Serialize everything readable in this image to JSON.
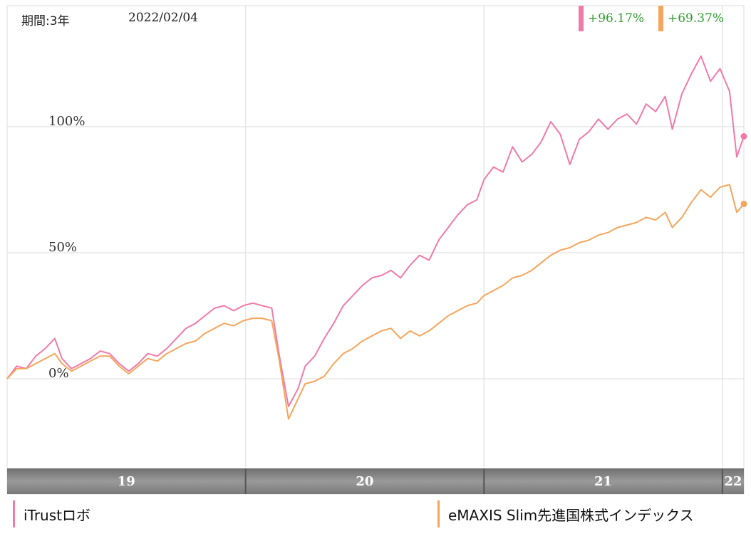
{
  "header": {
    "period_label": "期間:3年",
    "date": "2022/02/04"
  },
  "returns": [
    {
      "value": "+96.17%",
      "color": "#f07aa8"
    },
    {
      "value": "+69.37%",
      "color": "#f5a55c"
    }
  ],
  "legend": [
    {
      "name": "iTrustロボ",
      "color": "#f07aa8"
    },
    {
      "name": "eMAXIS Slim先進国株式インデックス",
      "color": "#f5a55c"
    }
  ],
  "colors": {
    "returns_text": "#2e9d2e",
    "grid": "#e6e6e6",
    "timeline_band": "#8a8a8a"
  },
  "chart_data": {
    "type": "line",
    "xlim": [
      2019.0,
      2022.09
    ],
    "ylim": [
      -35,
      148
    ],
    "y_ticks": [
      {
        "value": 0,
        "label": "0%"
      },
      {
        "value": 50,
        "label": "50%"
      },
      {
        "value": 100,
        "label": "100%"
      }
    ],
    "x_ticks": [
      {
        "value": 2019.0,
        "label": "19",
        "start": 2019.0,
        "end": 2020.0
      },
      {
        "value": 2020.0,
        "label": "20",
        "start": 2020.0,
        "end": 2021.0
      },
      {
        "value": 2021.0,
        "label": "21",
        "start": 2021.0,
        "end": 2022.0
      },
      {
        "value": 2022.0,
        "label": "22",
        "start": 2022.0,
        "end": 2022.09
      }
    ],
    "grid": true,
    "series": [
      {
        "name": "iTrustロボ",
        "color": "#f07aa8",
        "last_value": 96.17,
        "points": [
          [
            2019.0,
            0
          ],
          [
            2019.04,
            5
          ],
          [
            2019.08,
            4
          ],
          [
            2019.12,
            9
          ],
          [
            2019.16,
            12
          ],
          [
            2019.2,
            16
          ],
          [
            2019.23,
            8
          ],
          [
            2019.27,
            4
          ],
          [
            2019.31,
            6
          ],
          [
            2019.35,
            8
          ],
          [
            2019.39,
            11
          ],
          [
            2019.43,
            10
          ],
          [
            2019.47,
            6
          ],
          [
            2019.51,
            3
          ],
          [
            2019.55,
            6
          ],
          [
            2019.59,
            10
          ],
          [
            2019.63,
            9
          ],
          [
            2019.67,
            12
          ],
          [
            2019.71,
            16
          ],
          [
            2019.75,
            20
          ],
          [
            2019.79,
            22
          ],
          [
            2019.83,
            25
          ],
          [
            2019.87,
            28
          ],
          [
            2019.91,
            29
          ],
          [
            2019.95,
            27
          ],
          [
            2019.99,
            29
          ],
          [
            2020.03,
            30
          ],
          [
            2020.07,
            29
          ],
          [
            2020.11,
            28
          ],
          [
            2020.14,
            10
          ],
          [
            2020.18,
            -11
          ],
          [
            2020.22,
            -4
          ],
          [
            2020.25,
            5
          ],
          [
            2020.29,
            9
          ],
          [
            2020.33,
            16
          ],
          [
            2020.37,
            22
          ],
          [
            2020.41,
            29
          ],
          [
            2020.45,
            33
          ],
          [
            2020.49,
            37
          ],
          [
            2020.53,
            40
          ],
          [
            2020.57,
            41
          ],
          [
            2020.61,
            43
          ],
          [
            2020.65,
            40
          ],
          [
            2020.69,
            45
          ],
          [
            2020.73,
            49
          ],
          [
            2020.77,
            47
          ],
          [
            2020.81,
            55
          ],
          [
            2020.85,
            60
          ],
          [
            2020.89,
            65
          ],
          [
            2020.93,
            69
          ],
          [
            2020.97,
            71
          ],
          [
            2021.0,
            79
          ],
          [
            2021.04,
            84
          ],
          [
            2021.08,
            82
          ],
          [
            2021.12,
            92
          ],
          [
            2021.16,
            86
          ],
          [
            2021.2,
            89
          ],
          [
            2021.24,
            94
          ],
          [
            2021.28,
            102
          ],
          [
            2021.32,
            97
          ],
          [
            2021.36,
            85
          ],
          [
            2021.4,
            95
          ],
          [
            2021.44,
            98
          ],
          [
            2021.48,
            103
          ],
          [
            2021.52,
            99
          ],
          [
            2021.56,
            103
          ],
          [
            2021.6,
            105
          ],
          [
            2021.64,
            101
          ],
          [
            2021.68,
            109
          ],
          [
            2021.72,
            106
          ],
          [
            2021.76,
            112
          ],
          [
            2021.79,
            99
          ],
          [
            2021.83,
            113
          ],
          [
            2021.87,
            121
          ],
          [
            2021.91,
            128
          ],
          [
            2021.95,
            118
          ],
          [
            2021.99,
            123
          ],
          [
            2022.03,
            114
          ],
          [
            2022.06,
            88
          ],
          [
            2022.09,
            96.17
          ]
        ]
      },
      {
        "name": "eMAXIS Slim先進国株式インデックス",
        "color": "#f5a55c",
        "last_value": 69.37,
        "points": [
          [
            2019.0,
            0
          ],
          [
            2019.04,
            4
          ],
          [
            2019.08,
            4
          ],
          [
            2019.12,
            6
          ],
          [
            2019.16,
            8
          ],
          [
            2019.2,
            10
          ],
          [
            2019.23,
            6
          ],
          [
            2019.27,
            3
          ],
          [
            2019.31,
            5
          ],
          [
            2019.35,
            7
          ],
          [
            2019.39,
            9
          ],
          [
            2019.43,
            9
          ],
          [
            2019.47,
            5
          ],
          [
            2019.51,
            2
          ],
          [
            2019.55,
            5
          ],
          [
            2019.59,
            8
          ],
          [
            2019.63,
            7
          ],
          [
            2019.67,
            10
          ],
          [
            2019.71,
            12
          ],
          [
            2019.75,
            14
          ],
          [
            2019.79,
            15
          ],
          [
            2019.83,
            18
          ],
          [
            2019.87,
            20
          ],
          [
            2019.91,
            22
          ],
          [
            2019.95,
            21
          ],
          [
            2019.99,
            23
          ],
          [
            2020.03,
            24
          ],
          [
            2020.07,
            24
          ],
          [
            2020.11,
            23
          ],
          [
            2020.14,
            8
          ],
          [
            2020.18,
            -16
          ],
          [
            2020.22,
            -8
          ],
          [
            2020.25,
            -2
          ],
          [
            2020.29,
            -1
          ],
          [
            2020.33,
            1
          ],
          [
            2020.37,
            6
          ],
          [
            2020.41,
            10
          ],
          [
            2020.45,
            12
          ],
          [
            2020.49,
            15
          ],
          [
            2020.53,
            17
          ],
          [
            2020.57,
            19
          ],
          [
            2020.61,
            20
          ],
          [
            2020.65,
            16
          ],
          [
            2020.69,
            19
          ],
          [
            2020.73,
            17
          ],
          [
            2020.77,
            19
          ],
          [
            2020.81,
            22
          ],
          [
            2020.85,
            25
          ],
          [
            2020.89,
            27
          ],
          [
            2020.93,
            29
          ],
          [
            2020.97,
            30
          ],
          [
            2021.0,
            33
          ],
          [
            2021.04,
            35
          ],
          [
            2021.08,
            37
          ],
          [
            2021.12,
            40
          ],
          [
            2021.16,
            41
          ],
          [
            2021.2,
            43
          ],
          [
            2021.24,
            46
          ],
          [
            2021.28,
            49
          ],
          [
            2021.32,
            51
          ],
          [
            2021.36,
            52
          ],
          [
            2021.4,
            54
          ],
          [
            2021.44,
            55
          ],
          [
            2021.48,
            57
          ],
          [
            2021.52,
            58
          ],
          [
            2021.56,
            60
          ],
          [
            2021.6,
            61
          ],
          [
            2021.64,
            62
          ],
          [
            2021.68,
            64
          ],
          [
            2021.72,
            63
          ],
          [
            2021.76,
            66
          ],
          [
            2021.79,
            60
          ],
          [
            2021.83,
            64
          ],
          [
            2021.87,
            70
          ],
          [
            2021.91,
            75
          ],
          [
            2021.95,
            72
          ],
          [
            2021.99,
            76
          ],
          [
            2022.03,
            77
          ],
          [
            2022.06,
            66
          ],
          [
            2022.09,
            69.37
          ]
        ]
      }
    ]
  }
}
